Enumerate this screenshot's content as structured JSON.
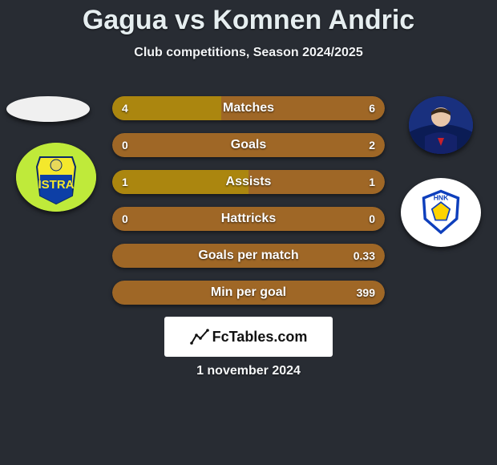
{
  "title": "Gagua vs Komnen Andric",
  "subtitle": "Club competitions, Season 2024/2025",
  "date_text": "1 november 2024",
  "watermark_text": "FcTables.com",
  "colors": {
    "background": "#282c33",
    "bar_right": "#9f6726",
    "bar_left": "#ab860f"
  },
  "stats": [
    {
      "label": "Matches",
      "left_val": "4",
      "right_val": "6",
      "left_pct": 40,
      "show_partial": true
    },
    {
      "label": "Goals",
      "left_val": "0",
      "right_val": "2",
      "left_pct": 0,
      "show_partial": false
    },
    {
      "label": "Assists",
      "left_val": "1",
      "right_val": "1",
      "left_pct": 50,
      "show_partial": true
    },
    {
      "label": "Hattricks",
      "left_val": "0",
      "right_val": "0",
      "left_pct": 0,
      "show_partial": false
    },
    {
      "label": "Goals per match",
      "left_val": "",
      "right_val": "0.33",
      "left_pct": 0,
      "show_partial": false
    },
    {
      "label": "Min per goal",
      "left_val": "",
      "right_val": "399",
      "left_pct": 0,
      "show_partial": false
    }
  ],
  "left_side": {
    "player_name": "Gagua",
    "club_name": "Istra"
  },
  "right_side": {
    "player_name": "Komnen Andric",
    "club_name": "HNK Rijeka"
  }
}
